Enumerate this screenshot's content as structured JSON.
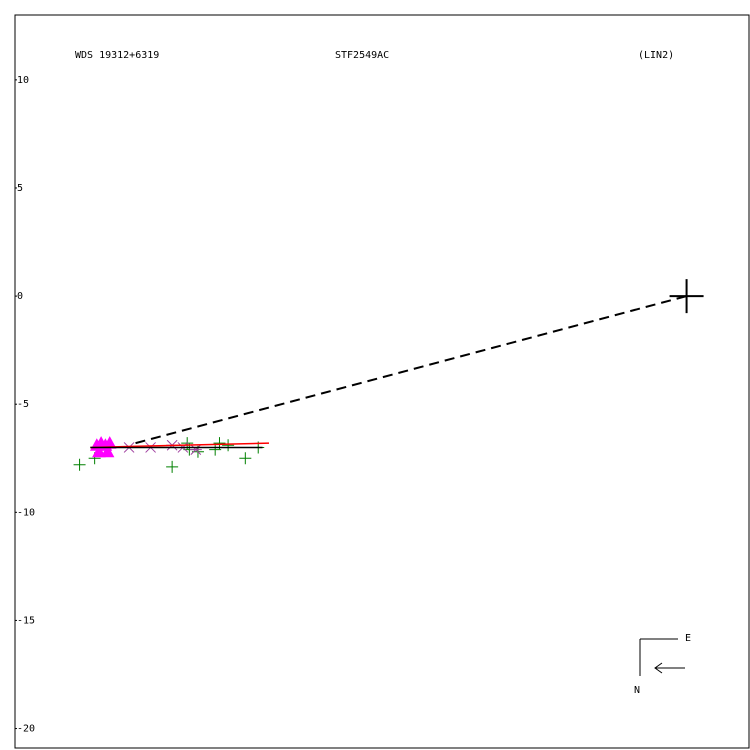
{
  "chart_data": {
    "type": "scatter",
    "header": [
      "WDS 19312+6319",
      "STF2549AC",
      "(LIN2)"
    ],
    "compass": {
      "east": "E",
      "north": "N"
    },
    "xlim": [
      -31.2,
      2.9
    ],
    "ylim": [
      -20.9,
      13.0
    ],
    "yticks": [
      10,
      5,
      0,
      -5,
      -10,
      -15,
      -20
    ],
    "series": [
      {
        "marker": "plus",
        "color": "#008000",
        "x": [
          -28.2,
          -27.5,
          -23.9,
          -23.2,
          -23.1,
          -22.7,
          -21.7,
          -21.3,
          -20.5,
          -19.9,
          -21.9
        ],
        "values": [
          -7.8,
          -7.5,
          -7.9,
          -6.8,
          -7.1,
          -7.2,
          -6.8,
          -6.9,
          -7.5,
          -7.0,
          -7.1
        ]
      },
      {
        "marker": "triangle",
        "color": "#ff00ff",
        "x": [
          -27.4,
          -27.2,
          -27.0,
          -26.8,
          -27.3,
          -26.9
        ],
        "values": [
          -6.9,
          -6.8,
          -6.9,
          -6.8,
          -7.2,
          -7.2
        ]
      },
      {
        "marker": "asterisk",
        "color": "#a040a0",
        "x": [
          -25.9,
          -24.9,
          -23.9,
          -22.8,
          -23.4
        ],
        "values": [
          -7.0,
          -7.0,
          -6.9,
          -7.1,
          -7.0
        ]
      },
      {
        "marker": "line",
        "color": "#ff0000",
        "x": [
          -27.7,
          -19.4
        ],
        "values": [
          -7.0,
          -6.8
        ]
      },
      {
        "marker": "line",
        "color": "#000000",
        "x": [
          -27.7,
          -19.7
        ],
        "values": [
          -7.0,
          -7.0
        ]
      },
      {
        "marker": "dashed",
        "color": "#000000",
        "x": [
          -25.6,
          0
        ],
        "values": [
          -6.8,
          0
        ]
      },
      {
        "marker": "bigcross",
        "color": "#000000",
        "x": [
          0
        ],
        "values": [
          0
        ]
      }
    ]
  }
}
